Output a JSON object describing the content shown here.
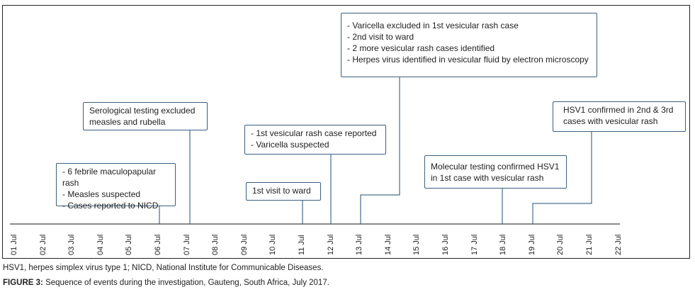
{
  "axis": {
    "dates": [
      "01 Jul",
      "02 Jul",
      "03 Jul",
      "04 Jul",
      "05 Jul",
      "06 Jul",
      "07 Jul",
      "08 Jul",
      "09 Jul",
      "10 Jul",
      "11 Jul",
      "12 Jul",
      "13 Jul",
      "14 Jul",
      "15 Jul",
      "16 Jul",
      "17 Jul",
      "18 Jul",
      "19 Jul",
      "20 Jul",
      "21 Jul",
      "22 Jul"
    ]
  },
  "events": [
    {
      "date": "06 Jul",
      "lines": [
        "- 6 febrile maculopapular rash",
        "- Measles suspected",
        "- Cases reported to NICD"
      ]
    },
    {
      "date": "07 Jul",
      "lines": [
        "Serological testing excluded",
        "measles and rubella"
      ]
    },
    {
      "date": "11 Jul",
      "lines": [
        "1st visit to ward"
      ]
    },
    {
      "date": "12 Jul",
      "lines": [
        "- 1st vesicular rash case reported",
        "- Varicella suspected"
      ]
    },
    {
      "date": "13 Jul",
      "lines": [
        "- Varicella excluded in 1st vesicular rash case",
        "- 2nd visit to ward",
        "- 2 more vesicular rash cases identified",
        "- Herpes virus identified in vesicular fluid by electron microscopy"
      ]
    },
    {
      "date": "18 Jul",
      "lines": [
        "Molecular testing confirmed HSV1",
        "in 1st case with vesicular rash"
      ]
    },
    {
      "date": "19 Jul",
      "lines": [
        "HSV1 confirmed in 2nd & 3rd",
        "cases with vesicular rash"
      ]
    }
  ],
  "caption": {
    "abbreviations": "HSV1, herpes simplex virus type 1; NICD, National Institute for Communicable Diseases.",
    "figure_label": "FIGURE 3:",
    "figure_text": " Sequence of events during the investigation, Gauteng, South Africa, July 2017."
  },
  "colors": {
    "line": "#1f4e79",
    "box_border": "#3b5f80"
  }
}
